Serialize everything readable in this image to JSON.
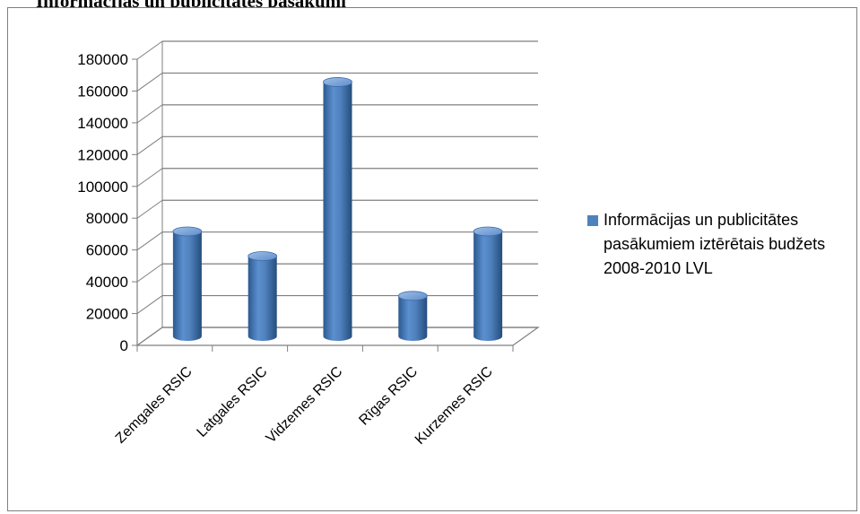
{
  "header": {
    "text": "Informācijas un publicitātes pasākumi"
  },
  "chart_data": {
    "type": "bar",
    "categories": [
      "Zemgales RSIC",
      "Latgales RSIC",
      "Vidzemes RSIC",
      "Rīgas RSIC",
      "Kurzemes RSIC"
    ],
    "series": [
      {
        "name": "Informācijas un publicitātes pasākumiem iztērētais budžets 2008-2010 LVL",
        "values": [
          66000,
          50500,
          160000,
          25500,
          66000
        ]
      }
    ],
    "yticks": [
      "0",
      "20000",
      "40000",
      "60000",
      "80000",
      "100000",
      "120000",
      "140000",
      "160000",
      "180000"
    ],
    "ylim": [
      0,
      180000
    ],
    "title": "",
    "xlabel": "",
    "ylabel": "",
    "grid": true,
    "legend_position": "right",
    "style": "3d-cylinder",
    "colors": {
      "bar": "#4f81bd",
      "bar_dark": "#2c5a8f",
      "bar_light": "#a8c4e6",
      "grid": "#7f7f7f"
    }
  }
}
